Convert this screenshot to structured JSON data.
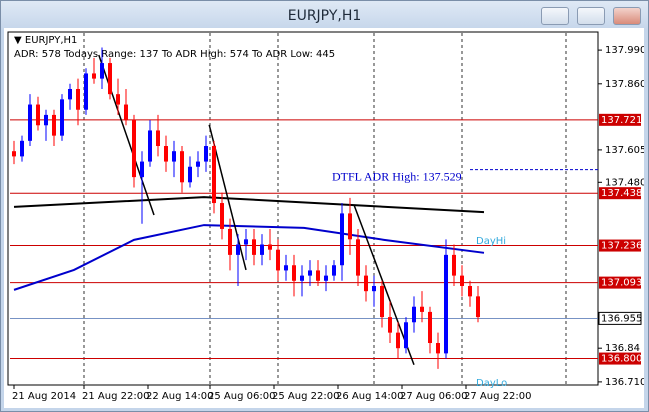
{
  "window_title": "EURJPY,H1",
  "chart_data": {
    "type": "candlestick",
    "symbol": "▼ EURJPY,H1",
    "info": "ADR: 578  Todays Range: 137  To ADR High: 574  To ADR Low: 445",
    "ylim": [
      136.698,
      138.056
    ],
    "xlim": [
      -0.5,
      73
    ],
    "yticks": [
      {
        "value": 137.99,
        "label": "137.990"
      },
      {
        "value": 137.86,
        "label": "137.860"
      },
      137.605,
      {
        "value": 137.48,
        "label": "137.480"
      },
      136.84,
      {
        "value": 136.71,
        "label": "136.710"
      }
    ],
    "xticks": [
      {
        "value": 0,
        "label": "21 Aug 2014"
      },
      {
        "value": 8.75,
        "label": "21 Aug 22:00"
      },
      {
        "value": 16.75,
        "label": "22 Aug 14:00"
      },
      {
        "value": 24.5,
        "label": "25 Aug 06:00"
      },
      {
        "value": 32.5,
        "label": "25 Aug 22:00"
      },
      {
        "value": 40.5,
        "label": "26 Aug 14:00"
      },
      {
        "value": 48.5,
        "label": "27 Aug 06:00"
      },
      {
        "value": 56.5,
        "label": "27 Aug 22:00"
      }
    ],
    "separators": [
      8.75,
      24.5,
      33,
      45,
      56,
      69
    ],
    "up_color": "#0000ff",
    "down_color": "#ff0000",
    "ohlc": [
      [
        137.6,
        137.64,
        137.55,
        137.58
      ],
      [
        137.58,
        137.66,
        137.56,
        137.64
      ],
      [
        137.64,
        137.82,
        137.62,
        137.78
      ],
      [
        137.78,
        137.81,
        137.68,
        137.7
      ],
      [
        137.7,
        137.76,
        137.64,
        137.74
      ],
      [
        137.74,
        137.76,
        137.62,
        137.66
      ],
      [
        137.66,
        137.82,
        137.64,
        137.8
      ],
      [
        137.8,
        137.86,
        137.76,
        137.84
      ],
      [
        137.84,
        137.88,
        137.7,
        137.76
      ],
      [
        137.76,
        137.92,
        137.74,
        137.9
      ],
      [
        137.9,
        137.96,
        137.86,
        137.88
      ],
      [
        137.88,
        138.0,
        137.84,
        137.94
      ],
      [
        137.94,
        137.96,
        137.8,
        137.82
      ],
      [
        137.82,
        137.88,
        137.74,
        137.78
      ],
      [
        137.78,
        137.84,
        137.7,
        137.72
      ],
      [
        137.72,
        137.74,
        137.46,
        137.5
      ],
      [
        137.5,
        137.6,
        137.32,
        137.56
      ],
      [
        137.56,
        137.72,
        137.54,
        137.68
      ],
      [
        137.68,
        137.74,
        137.58,
        137.62
      ],
      [
        137.62,
        137.66,
        137.52,
        137.56
      ],
      [
        137.56,
        137.64,
        137.5,
        137.6
      ],
      [
        137.6,
        137.62,
        137.44,
        137.48
      ],
      [
        137.48,
        137.58,
        137.46,
        137.54
      ],
      [
        137.54,
        137.6,
        137.5,
        137.56
      ],
      [
        137.56,
        137.66,
        137.52,
        137.62
      ],
      [
        137.62,
        137.64,
        137.36,
        137.4
      ],
      [
        137.4,
        137.44,
        137.26,
        137.3
      ],
      [
        137.3,
        137.34,
        137.14,
        137.2
      ],
      [
        137.2,
        137.28,
        137.08,
        137.24
      ],
      [
        137.24,
        137.3,
        137.18,
        137.26
      ],
      [
        137.26,
        137.3,
        137.16,
        137.2
      ],
      [
        137.2,
        137.28,
        137.16,
        137.24
      ],
      [
        137.24,
        137.3,
        137.18,
        137.22
      ],
      [
        137.22,
        137.26,
        137.1,
        137.14
      ],
      [
        137.14,
        137.2,
        137.1,
        137.16
      ],
      [
        137.16,
        137.2,
        137.04,
        137.1
      ],
      [
        137.1,
        137.16,
        137.04,
        137.12
      ],
      [
        137.12,
        137.18,
        137.08,
        137.14
      ],
      [
        137.14,
        137.18,
        137.08,
        137.1
      ],
      [
        137.1,
        137.16,
        137.06,
        137.12
      ],
      [
        137.12,
        137.18,
        137.1,
        137.16
      ],
      [
        137.16,
        137.4,
        137.1,
        137.36
      ],
      [
        137.36,
        137.42,
        137.2,
        137.26
      ],
      [
        137.26,
        137.3,
        137.08,
        137.12
      ],
      [
        137.12,
        137.16,
        137.02,
        137.06
      ],
      [
        137.06,
        137.12,
        137.0,
        137.08
      ],
      [
        137.08,
        137.1,
        136.92,
        136.96
      ],
      [
        136.96,
        137.02,
        136.86,
        136.9
      ],
      [
        136.9,
        136.94,
        136.8,
        136.84
      ],
      [
        136.84,
        136.96,
        136.82,
        136.94
      ],
      [
        136.94,
        137.04,
        136.9,
        137.0
      ],
      [
        137.0,
        137.06,
        136.94,
        136.98
      ],
      [
        136.98,
        137.0,
        136.82,
        136.86
      ],
      [
        136.86,
        136.9,
        136.76,
        136.82
      ],
      [
        136.82,
        137.26,
        136.8,
        137.2
      ],
      [
        137.2,
        137.24,
        137.08,
        137.12
      ],
      [
        137.12,
        137.16,
        137.04,
        137.08
      ],
      [
        137.08,
        137.1,
        137.0,
        137.04
      ],
      [
        137.04,
        137.08,
        136.94,
        136.96
      ]
    ],
    "moving_averages": [
      {
        "color": "#000000",
        "x": [
          0,
          23.75,
          42.5,
          58.75
        ],
        "values": [
          137.385,
          137.423,
          137.392,
          137.365
        ]
      },
      {
        "color": "#0000cc",
        "x": [
          0,
          7.5,
          15,
          23.75,
          36.25,
          46.25,
          58.75
        ],
        "values": [
          137.065,
          137.142,
          137.258,
          137.315,
          137.304,
          137.258,
          137.208
        ]
      }
    ],
    "trend_lines": [
      {
        "x": [
          10.6,
          17.5
        ],
        "values": [
          137.971,
          137.354
        ]
      },
      {
        "x": [
          24.4,
          29
        ],
        "values": [
          137.702,
          137.142
        ]
      },
      {
        "x": [
          42.5,
          50
        ],
        "values": [
          137.393,
          136.776
        ]
      }
    ],
    "levels": [
      137.721,
      137.438,
      137.236,
      137.093,
      {
        "value": 136.8,
        "label": "136.800"
      }
    ],
    "level_color": "#cc0000",
    "current_price": 136.955,
    "adr_high": {
      "value": 137.529,
      "label": "DTFL ADR High: 137.529",
      "x": 57
    },
    "day_hi_label": "DayHi",
    "day_lo_label": "DayLo"
  }
}
